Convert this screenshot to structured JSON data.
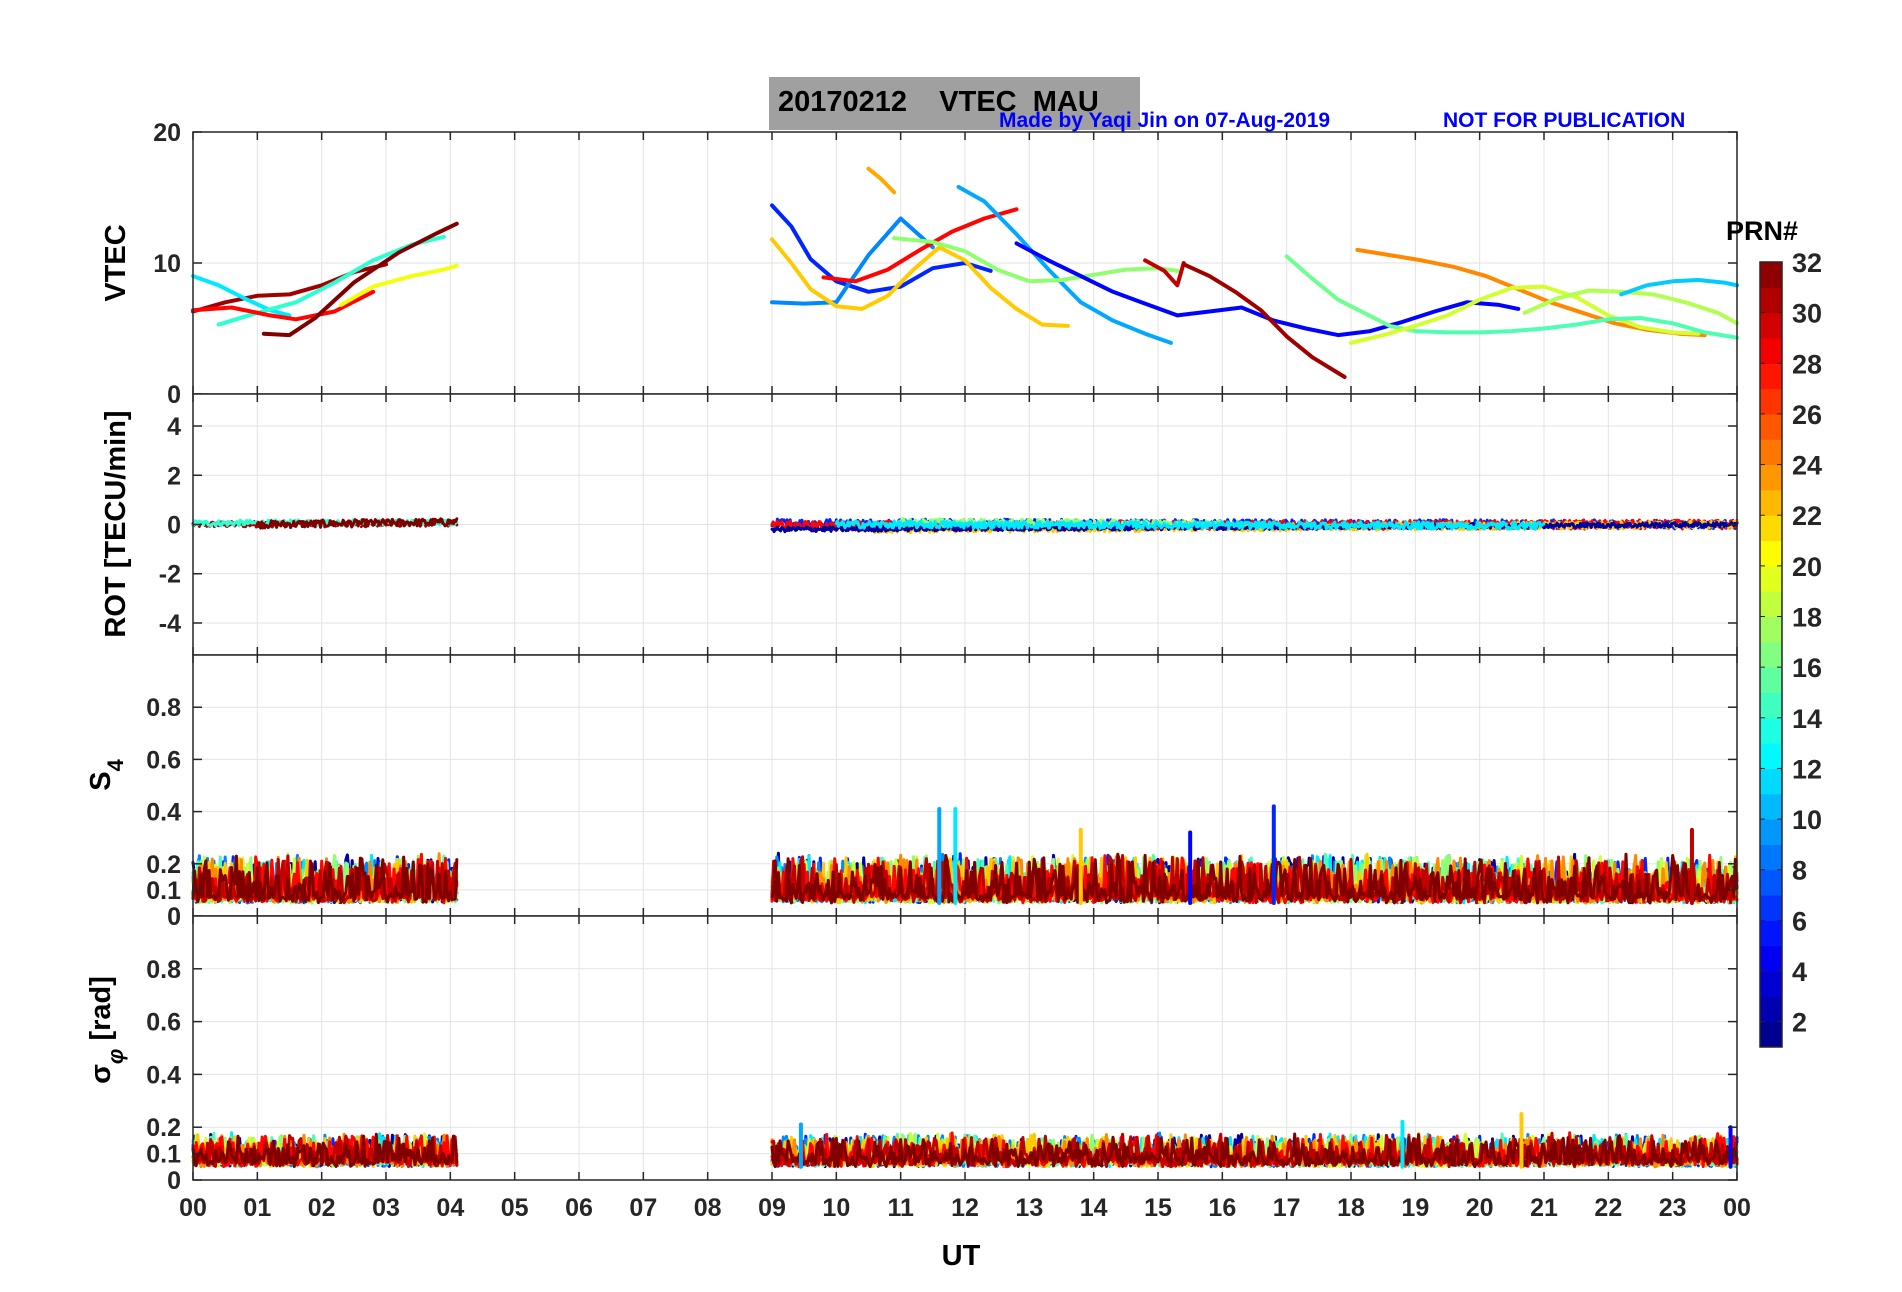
{
  "title": {
    "date": "20170212",
    "label": "VTEC  MAU"
  },
  "credit": {
    "made_by": "Made by Yaqi Jin on 07-Aug-2019",
    "notice": "NOT FOR PUBLICATION"
  },
  "colorbar": {
    "label": "PRN#",
    "ticks": [
      "2",
      "4",
      "6",
      "8",
      "10",
      "12",
      "14",
      "16",
      "18",
      "20",
      "22",
      "24",
      "26",
      "28",
      "30",
      "32"
    ],
    "range": [
      1,
      32
    ]
  },
  "xaxis": {
    "label": "UT",
    "ticks": [
      "00",
      "01",
      "02",
      "03",
      "04",
      "05",
      "06",
      "07",
      "08",
      "09",
      "10",
      "11",
      "12",
      "13",
      "14",
      "15",
      "16",
      "17",
      "18",
      "19",
      "20",
      "21",
      "22",
      "23",
      "00"
    ]
  },
  "chart_data": [
    {
      "type": "line",
      "ylabel": "VTEC",
      "ylim": [
        0,
        20
      ],
      "yticks": [
        "0",
        "10",
        "20"
      ],
      "grid": true,
      "series": [
        {
          "prn": 31,
          "x": [
            0.0,
            0.5,
            1.0,
            1.5,
            2.0,
            2.5,
            3.0
          ],
          "y": [
            6.3,
            7.0,
            7.5,
            7.6,
            8.3,
            9.3,
            9.9
          ]
        },
        {
          "prn": 12,
          "x": [
            0.0,
            0.4,
            0.8,
            1.2,
            1.5
          ],
          "y": [
            9.0,
            8.3,
            7.3,
            6.4,
            6.0
          ]
        },
        {
          "prn": 14,
          "x": [
            0.4,
            1.0,
            1.6,
            2.2,
            2.8,
            3.4,
            3.9
          ],
          "y": [
            5.3,
            6.2,
            7.0,
            8.5,
            10.2,
            11.4,
            12.0
          ]
        },
        {
          "prn": 28,
          "x": [
            0.0,
            0.6,
            1.2,
            1.6,
            2.2,
            2.8
          ],
          "y": [
            6.4,
            6.6,
            6.0,
            5.7,
            6.3,
            7.8
          ]
        },
        {
          "prn": 32,
          "x": [
            1.1,
            1.5,
            1.9,
            2.5,
            3.2,
            3.8,
            4.1
          ],
          "y": [
            4.6,
            4.5,
            5.8,
            8.5,
            10.8,
            12.3,
            13.0
          ]
        },
        {
          "prn": 20,
          "x": [
            2.3,
            2.8,
            3.4,
            3.9,
            4.1
          ],
          "y": [
            6.8,
            8.2,
            9.0,
            9.5,
            9.8
          ]
        },
        {
          "prn": 6,
          "x": [
            9.0,
            9.3,
            9.6,
            10.0,
            10.5,
            11.0,
            11.5,
            12.0,
            12.4
          ],
          "y": [
            14.4,
            12.8,
            10.3,
            8.6,
            7.8,
            8.2,
            9.6,
            10.0,
            9.4
          ]
        },
        {
          "prn": 9,
          "x": [
            9.0,
            9.5,
            10.0,
            10.5,
            11.0,
            11.5
          ],
          "y": [
            7.0,
            6.9,
            7.0,
            10.6,
            13.4,
            11.2
          ]
        },
        {
          "prn": 22,
          "x": [
            9.0,
            9.3,
            9.6,
            10.0,
            10.4,
            10.8,
            11.2,
            11.6,
            12.0,
            12.4,
            12.8,
            13.2,
            13.6
          ],
          "y": [
            11.8,
            10.0,
            8.0,
            6.7,
            6.5,
            7.5,
            9.5,
            11.2,
            10.2,
            8.1,
            6.5,
            5.3,
            5.2
          ]
        },
        {
          "prn": 23,
          "x": [
            10.5,
            10.7,
            10.9
          ],
          "y": [
            17.2,
            16.4,
            15.4
          ]
        },
        {
          "prn": 28,
          "x": [
            9.8,
            10.3,
            10.8,
            11.3,
            11.8,
            12.3,
            12.8
          ],
          "y": [
            8.9,
            8.6,
            9.5,
            11.0,
            12.4,
            13.4,
            14.1
          ]
        },
        {
          "prn": 10,
          "x": [
            11.9,
            12.3,
            12.8,
            13.3,
            13.8,
            14.3,
            14.8,
            15.2
          ],
          "y": [
            15.8,
            14.7,
            12.2,
            9.5,
            7.0,
            5.6,
            4.6,
            3.9
          ]
        },
        {
          "prn": 17,
          "x": [
            10.9,
            11.5,
            12.0,
            12.5,
            13.0,
            13.5,
            14.0,
            14.5,
            15.0,
            15.3
          ],
          "y": [
            11.9,
            11.6,
            10.9,
            9.5,
            8.6,
            8.7,
            9.1,
            9.5,
            9.6,
            9.4
          ]
        },
        {
          "prn": 5,
          "x": [
            12.8,
            13.3,
            13.8,
            14.3,
            14.8,
            15.3,
            15.8,
            16.3,
            16.8,
            17.3,
            17.8,
            18.3,
            18.8,
            19.3,
            19.8,
            20.3,
            20.6
          ],
          "y": [
            11.5,
            10.2,
            9.0,
            7.8,
            6.9,
            6.0,
            6.3,
            6.6,
            5.6,
            5.0,
            4.5,
            4.8,
            5.5,
            6.3,
            7.0,
            6.8,
            6.5
          ]
        },
        {
          "prn": 30,
          "x": [
            14.8,
            15.1,
            15.3,
            15.4
          ],
          "y": [
            10.2,
            9.4,
            8.3,
            10.0
          ]
        },
        {
          "prn": 31,
          "x": [
            15.4,
            15.8,
            16.2,
            16.6,
            17.0,
            17.4,
            17.8,
            17.9
          ],
          "y": [
            9.9,
            9.0,
            7.8,
            6.4,
            4.4,
            2.8,
            1.6,
            1.3
          ]
        },
        {
          "prn": 16,
          "x": [
            17.0,
            17.4,
            17.8,
            18.2,
            18.6,
            19.0
          ],
          "y": [
            10.5,
            8.8,
            7.2,
            6.2,
            5.2,
            4.8
          ]
        },
        {
          "prn": 24,
          "x": [
            18.1,
            18.6,
            19.1,
            19.6,
            20.1,
            20.6,
            21.1,
            21.6,
            22.1,
            22.6,
            23.1,
            23.5
          ],
          "y": [
            11.0,
            10.6,
            10.2,
            9.7,
            9.0,
            8.0,
            7.0,
            6.2,
            5.4,
            4.9,
            4.6,
            4.5
          ]
        },
        {
          "prn": 19,
          "x": [
            18.0,
            18.5,
            19.0,
            19.5,
            20.0,
            20.5,
            21.0,
            21.5,
            22.0,
            22.5,
            23.0,
            23.4
          ],
          "y": [
            3.9,
            4.5,
            5.2,
            6.0,
            7.2,
            8.1,
            8.2,
            7.4,
            6.0,
            5.1,
            4.7,
            4.6
          ]
        },
        {
          "prn": 15,
          "x": [
            19.0,
            19.5,
            20.0,
            20.5,
            21.0,
            21.5,
            22.0,
            22.5,
            23.0,
            23.5,
            24.0
          ],
          "y": [
            4.8,
            4.7,
            4.7,
            4.8,
            5.0,
            5.3,
            5.7,
            5.8,
            5.4,
            4.7,
            4.3
          ]
        },
        {
          "prn": 18,
          "x": [
            20.7,
            21.2,
            21.7,
            22.2,
            22.7,
            23.2,
            23.7,
            24.0
          ],
          "y": [
            6.2,
            7.3,
            7.9,
            7.8,
            7.6,
            7.0,
            6.2,
            5.4
          ]
        },
        {
          "prn": 11,
          "x": [
            22.2,
            22.6,
            23.0,
            23.4,
            23.8,
            24.0
          ],
          "y": [
            7.6,
            8.3,
            8.6,
            8.7,
            8.5,
            8.3
          ]
        }
      ]
    },
    {
      "type": "line",
      "ylabel": "ROT [TECU/min]",
      "ylim": [
        -5.3,
        5.3
      ],
      "yticks": [
        "-4",
        "-2",
        "0",
        "2",
        "4"
      ],
      "grid": true,
      "note": "values fluctuate closely around 0 during 00-04 UT and 09-24 UT",
      "series": [
        {
          "prn": 31,
          "x": [
            0.0,
            4.1
          ],
          "y": [
            0.0,
            0.05
          ],
          "noise": 0.12
        },
        {
          "prn": 14,
          "x": [
            0.0,
            4.1
          ],
          "y": [
            0.05,
            0.1
          ],
          "noise": 0.12
        },
        {
          "prn": 32,
          "x": [
            1.0,
            4.1
          ],
          "y": [
            0.0,
            0.1
          ],
          "noise": 0.15
        },
        {
          "prn": 6,
          "x": [
            9.0,
            24.0
          ],
          "y": [
            0.05,
            0.0
          ],
          "noise": 0.18
        },
        {
          "prn": 28,
          "x": [
            9.0,
            24.0
          ],
          "y": [
            -0.05,
            0.0
          ],
          "noise": 0.18
        },
        {
          "prn": 22,
          "x": [
            10.5,
            24.0
          ],
          "y": [
            -0.2,
            0.0
          ],
          "noise": 0.15
        },
        {
          "prn": 17,
          "x": [
            11.0,
            16.0
          ],
          "y": [
            0.1,
            0.0
          ],
          "noise": 0.15
        },
        {
          "prn": 2,
          "x": [
            9.0,
            24.0
          ],
          "y": [
            -0.2,
            0.0
          ],
          "noise": 0.1
        },
        {
          "prn": 12,
          "x": [
            10.0,
            21.0
          ],
          "y": [
            0.0,
            -0.05
          ],
          "noise": 0.15
        }
      ]
    },
    {
      "type": "line",
      "ylabel": "S4",
      "ylim": [
        0,
        1
      ],
      "yticks": [
        "0",
        "0.1",
        "0.2",
        "0.4",
        "0.6",
        "0.8"
      ],
      "grid": true,
      "note": "dense noisy traces between roughly 0.03 and 0.3 with spikes up to about 0.41",
      "segments": [
        {
          "start": 0.0,
          "end": 4.1
        },
        {
          "start": 9.0,
          "end": 24.0
        }
      ],
      "typical_range": [
        0.03,
        0.3
      ],
      "peaks": [
        {
          "x": 11.6,
          "y": 0.41
        },
        {
          "x": 11.85,
          "y": 0.41
        },
        {
          "x": 13.8,
          "y": 0.33
        },
        {
          "x": 15.5,
          "y": 0.32
        },
        {
          "x": 16.8,
          "y": 0.42
        },
        {
          "x": 23.3,
          "y": 0.33
        }
      ]
    },
    {
      "type": "line",
      "ylabel": "σ_φ [rad]",
      "ylim": [
        0,
        1
      ],
      "yticks": [
        "0",
        "0.1",
        "0.2",
        "0.4",
        "0.6",
        "0.8"
      ],
      "grid": true,
      "note": "dense noisy traces mostly between 0.03 and 0.2",
      "segments": [
        {
          "start": 0.0,
          "end": 4.1
        },
        {
          "start": 9.0,
          "end": 24.0
        }
      ],
      "typical_range": [
        0.03,
        0.2
      ],
      "peaks": [
        {
          "x": 9.45,
          "y": 0.21
        },
        {
          "x": 18.8,
          "y": 0.22
        },
        {
          "x": 20.65,
          "y": 0.25
        },
        {
          "x": 23.9,
          "y": 0.2
        }
      ]
    }
  ]
}
